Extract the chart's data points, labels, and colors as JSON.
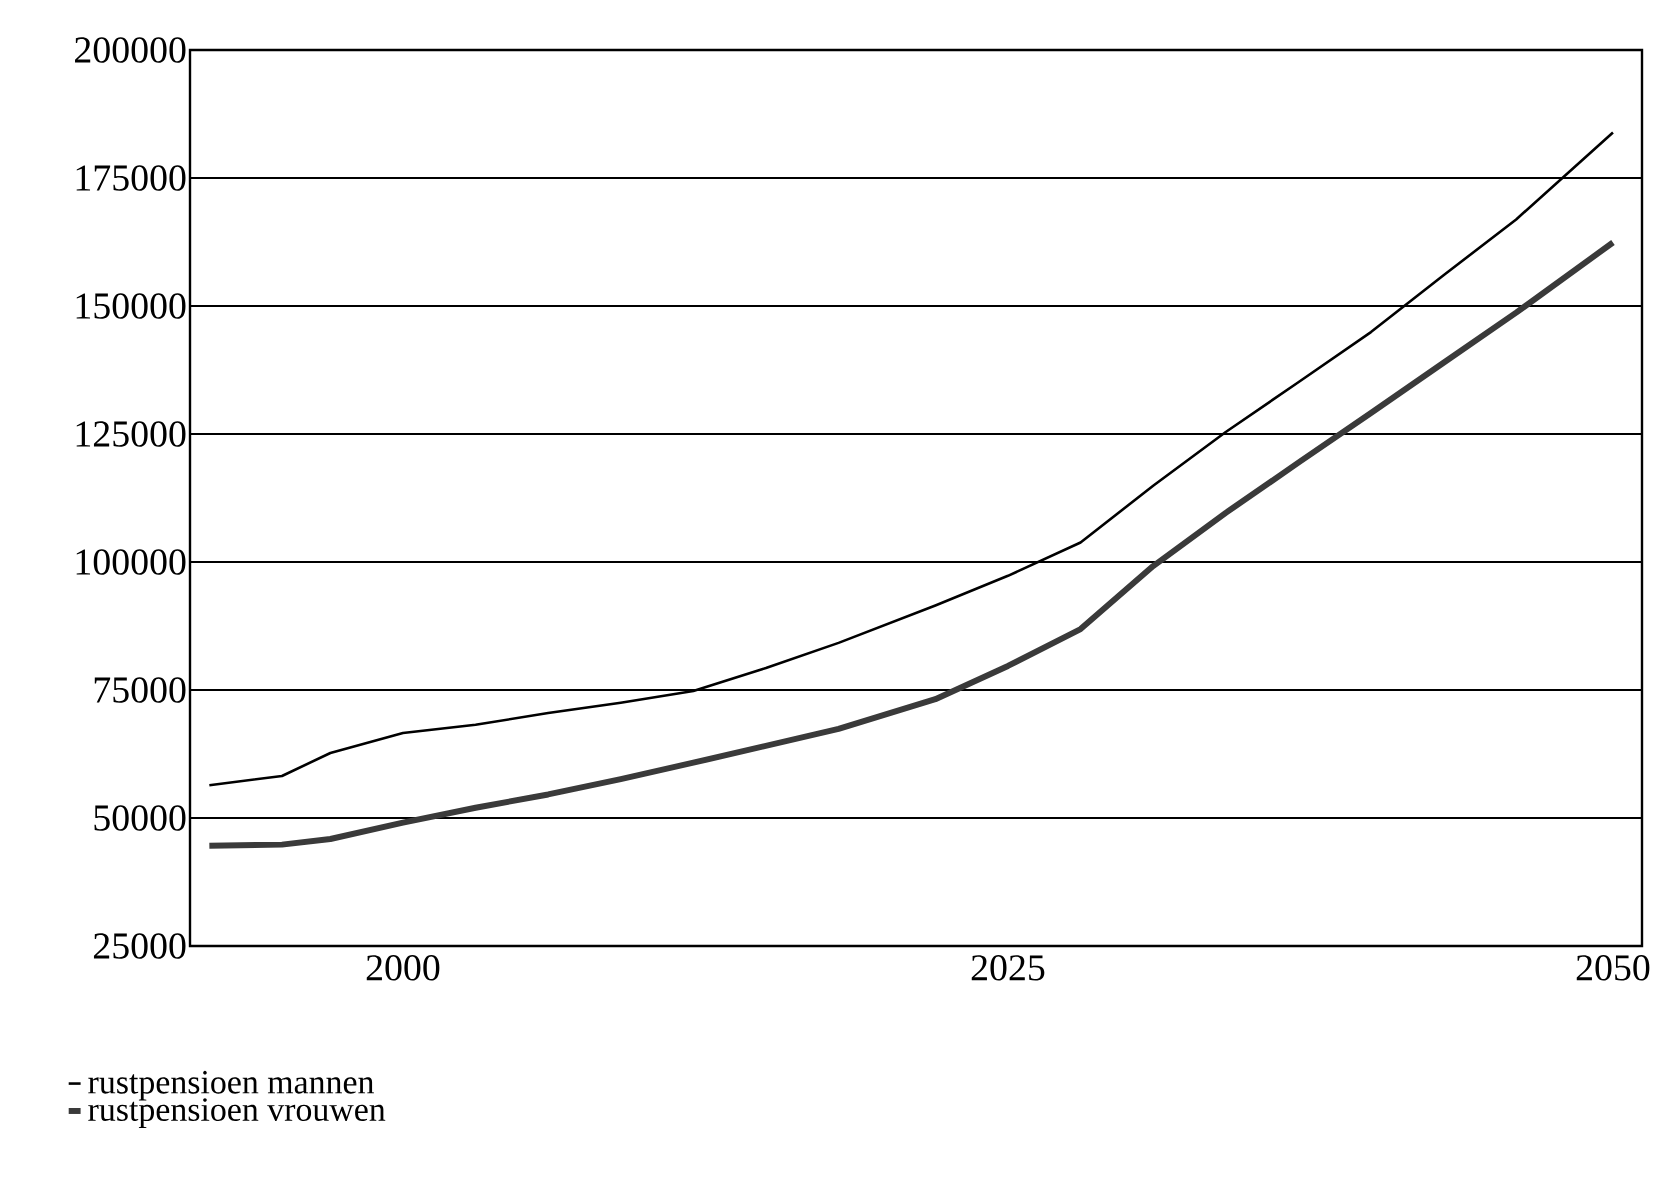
{
  "chart_data": {
    "type": "line",
    "xlim": [
      1991.2,
      2051.2
    ],
    "xticks": [
      2000,
      2025,
      2050
    ],
    "ylim": [
      25000,
      200000
    ],
    "yticks": [
      25000,
      50000,
      75000,
      100000,
      125000,
      150000,
      175000,
      200000
    ],
    "grid": "y",
    "legend": "bottom left",
    "marker": "none",
    "line_style": "solid",
    "series": [
      {
        "name": "rustpensioen mannen",
        "color": "#000000",
        "x": [
          1992,
          1995,
          1997,
          2000,
          2003,
          2006,
          2009,
          2012,
          2015,
          2018,
          2022,
          2025,
          2028,
          2031,
          2034,
          2037,
          2040,
          2043,
          2046,
          2050
        ],
        "values": [
          56400,
          58200,
          62700,
          66600,
          68200,
          70500,
          72500,
          74800,
          79300,
          84200,
          91500,
          97300,
          103800,
          114900,
          125400,
          135100,
          144900,
          156000,
          166900,
          183900
        ]
      },
      {
        "name": "rustpensioen vrouwen",
        "color": "#3a3a3a",
        "x": [
          1992,
          1995,
          1997,
          2000,
          2003,
          2006,
          2009,
          2012,
          2015,
          2018,
          2022,
          2025,
          2028,
          2031,
          2034,
          2037,
          2040,
          2043,
          2046,
          2050
        ],
        "values": [
          44600,
          44800,
          45900,
          49100,
          52000,
          54600,
          57600,
          60800,
          64100,
          67400,
          73200,
          79700,
          86900,
          99200,
          109600,
          119400,
          129100,
          138900,
          148700,
          162400
        ]
      }
    ]
  }
}
